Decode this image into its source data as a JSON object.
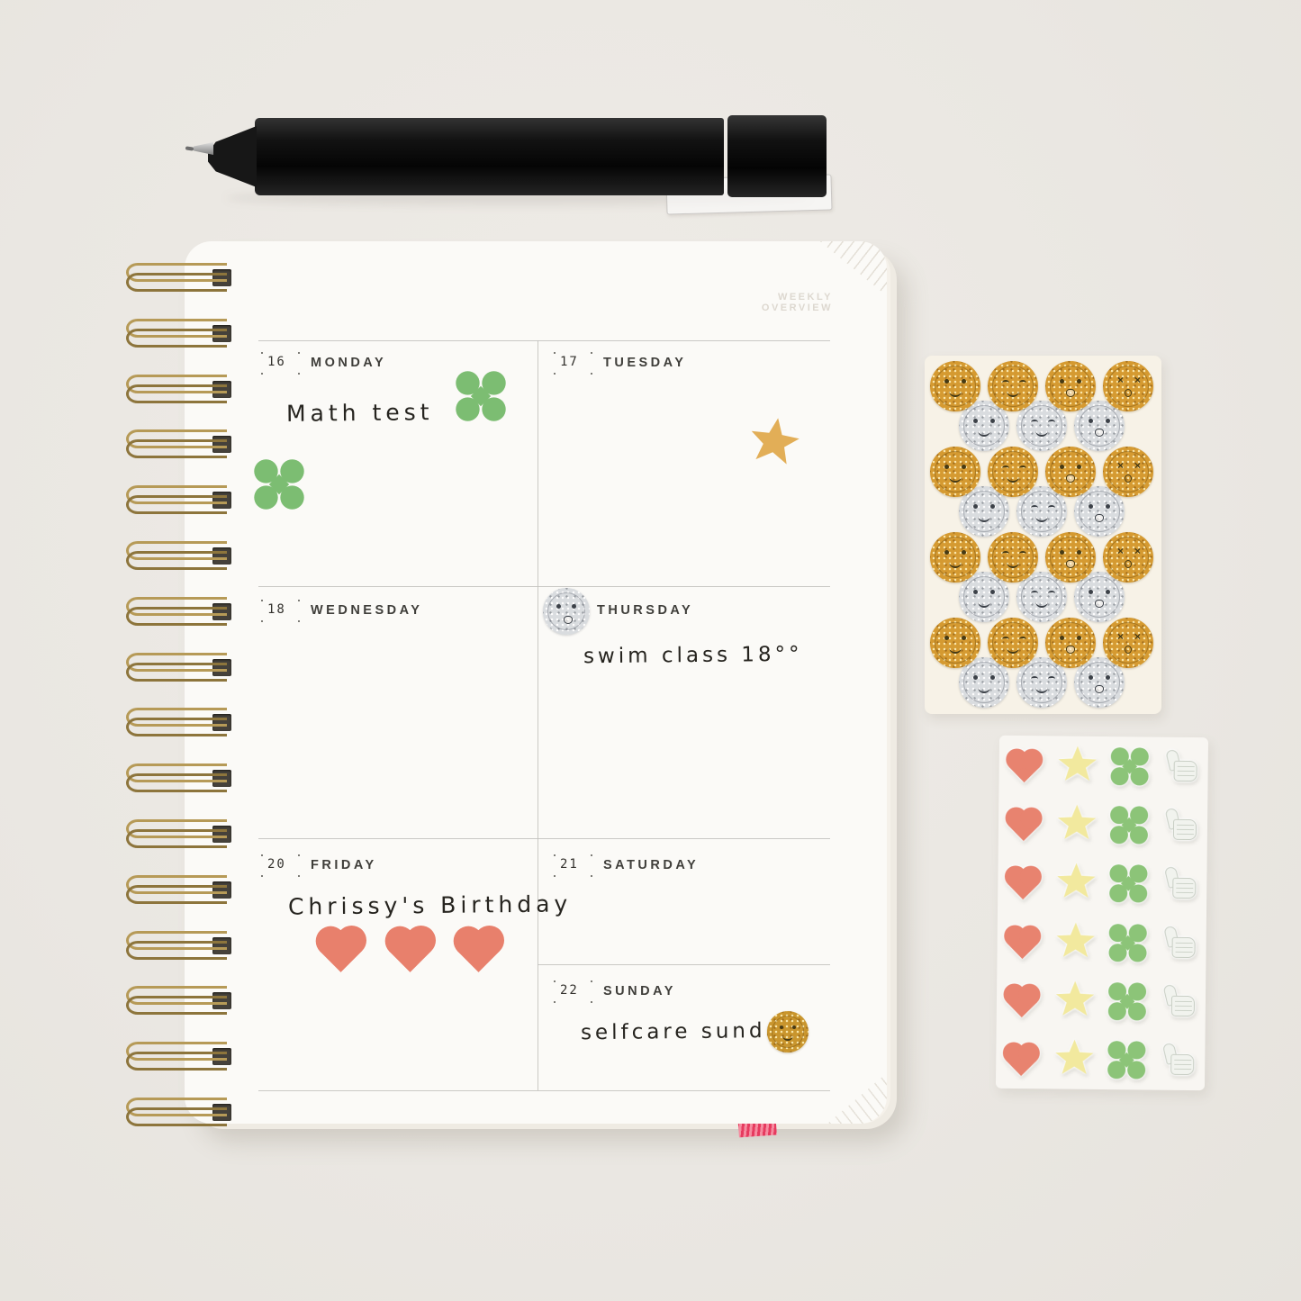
{
  "scene": {
    "background_color": "#ece9e4"
  },
  "pen": {
    "color": "black",
    "clip": "clear-plastic-clip"
  },
  "notebook": {
    "page_header": "WEEKLY OVERVIEW",
    "binding": {
      "ring_count": 16,
      "ring_color_hex": "#a5894e"
    },
    "bookmark_color_hex": "#e63b5f",
    "week": [
      {
        "date": "16",
        "day": "MONDAY",
        "entry": "Math test",
        "stickers": [
          "green-clover",
          "green-clover"
        ]
      },
      {
        "date": "17",
        "day": "TUESDAY",
        "entry": "",
        "stickers": [
          "gold-star"
        ]
      },
      {
        "date": "18",
        "day": "WEDNESDAY",
        "entry": "",
        "stickers": []
      },
      {
        "date": "",
        "day": "THURSDAY",
        "entry": "swim class 18°°",
        "stickers": [
          "silver-glitter-smiley"
        ]
      },
      {
        "date": "20",
        "day": "FRIDAY",
        "entry": "Chrissy's Birthday",
        "stickers": [
          "coral-heart",
          "coral-heart",
          "coral-heart"
        ]
      },
      {
        "date": "21",
        "day": "SATURDAY",
        "entry": "",
        "stickers": []
      },
      {
        "date": "22",
        "day": "SUNDAY",
        "entry": "selfcare sunday",
        "stickers": [
          "gold-glitter-smiley"
        ]
      }
    ]
  },
  "smiley_sticker_sheet": {
    "gold_hex": "#d59a31",
    "silver_hex": "#d9dcdf",
    "rows": [
      {
        "color": "gold",
        "faces": [
          "dot-smile",
          "happy-smile",
          "dot-open",
          "x-o"
        ]
      },
      {
        "color": "silver",
        "faces": [
          "dot-smile",
          "happy-smile",
          "dot-open"
        ]
      },
      {
        "color": "gold",
        "faces": [
          "dot-smile",
          "happy-smile",
          "dot-open",
          "x-o"
        ]
      },
      {
        "color": "silver",
        "faces": [
          "dot-smile",
          "happy-smile",
          "dot-open"
        ]
      },
      {
        "color": "gold",
        "faces": [
          "dot-smile",
          "happy-smile",
          "dot-open",
          "x-o"
        ]
      },
      {
        "color": "silver",
        "faces": [
          "dot-smile",
          "happy-smile",
          "dot-open"
        ]
      },
      {
        "color": "gold",
        "faces": [
          "dot-smile",
          "happy-smile",
          "dot-open",
          "x-o"
        ]
      },
      {
        "color": "silver",
        "faces": [
          "dot-smile",
          "happy-smile",
          "dot-open"
        ]
      }
    ]
  },
  "shape_sticker_sheet": {
    "row_count": 6,
    "shapes": [
      "heart",
      "star",
      "clover",
      "thumbs-up"
    ],
    "heart_hex": "#e8836f",
    "star_hex": "#f2e99e",
    "clover_hex": "#8cc478",
    "thumb_hex": "#f1f3ee"
  },
  "colors": {
    "background": "#ece9e4",
    "page": "#fbfaf7",
    "grid_line": "#c1c0bc",
    "day_text": "#3f3e3a",
    "handwriting": "#26241f",
    "clover_green": "#7cbd72",
    "heart_coral": "#e8806c",
    "star_gold": "#e2ae57",
    "binding_brass": "#a5894e"
  }
}
